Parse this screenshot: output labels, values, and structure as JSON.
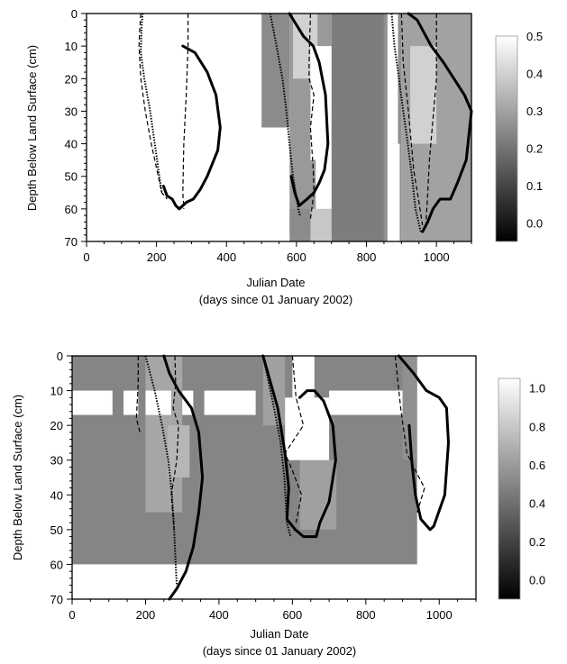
{
  "chart_data": [
    {
      "type": "heatmap",
      "xlabel": "Julian Date",
      "xlabel_line2": "(days since 01 January 2002)",
      "ylabel": "Depth Below Land Surface (cm)",
      "xlim": [
        0,
        1100
      ],
      "ylim": [
        70,
        0
      ],
      "y_inverted": true,
      "x_ticks": [
        0,
        200,
        400,
        600,
        800,
        1000
      ],
      "y_ticks": [
        0,
        10,
        20,
        30,
        40,
        50,
        60,
        70
      ],
      "colorbar": {
        "range": [
          -0.05,
          0.5
        ],
        "ticks": [
          "0.5",
          "0.4",
          "0.3",
          "0.2",
          "0.1",
          "0.0"
        ],
        "tick_values": [
          0.5,
          0.4,
          0.3,
          0.2,
          0.1,
          0.0
        ],
        "low_color": "#000000",
        "high_color": "#ffffff"
      },
      "cells": [
        {
          "x": [
            500,
            580
          ],
          "y": [
            0,
            35
          ],
          "value": 0.25
        },
        {
          "x": [
            580,
            700
          ],
          "y": [
            0,
            68
          ],
          "value": 0.28
        },
        {
          "x": [
            590,
            660
          ],
          "y": [
            0,
            20
          ],
          "value": 0.4
        },
        {
          "x": [
            700,
            850
          ],
          "y": [
            0,
            70
          ],
          "value": 0.22
        },
        {
          "x": [
            850,
            900
          ],
          "y": [
            0,
            70
          ],
          "value": 0.26
        },
        {
          "x": [
            900,
            1100
          ],
          "y": [
            0,
            70
          ],
          "value": 0.3
        },
        {
          "x": [
            925,
            1000
          ],
          "y": [
            10,
            40
          ],
          "value": 0.4
        },
        {
          "x": [
            580,
            640
          ],
          "y": [
            60,
            70
          ],
          "value": 0.25
        },
        {
          "x": [
            640,
            700
          ],
          "y": [
            60,
            70
          ],
          "value": 0.38
        }
      ],
      "white_regions": [
        {
          "x": [
            0,
            500
          ],
          "y": [
            0,
            70
          ]
        },
        {
          "x": [
            500,
            580
          ],
          "y": [
            35,
            70
          ]
        },
        {
          "x": [
            640,
            700
          ],
          "y": [
            10,
            45
          ]
        },
        {
          "x": [
            655,
            700
          ],
          "y": [
            45,
            60
          ]
        },
        {
          "x": [
            860,
            890
          ],
          "y": [
            0,
            40
          ]
        },
        {
          "x": [
            860,
            895
          ],
          "y": [
            40,
            70
          ]
        }
      ],
      "solid_curves": [
        [
          [
            275,
            10
          ],
          [
            310,
            12
          ],
          [
            345,
            18
          ],
          [
            370,
            25
          ],
          [
            382,
            35
          ],
          [
            375,
            42
          ],
          [
            345,
            50
          ],
          [
            325,
            54
          ],
          [
            305,
            57
          ],
          [
            285,
            58
          ],
          [
            265,
            60
          ],
          [
            255,
            59
          ],
          [
            245,
            57
          ],
          [
            230,
            56
          ],
          [
            220,
            53
          ]
        ],
        [
          [
            580,
            0
          ],
          [
            620,
            7
          ],
          [
            648,
            10
          ],
          [
            665,
            15
          ],
          [
            683,
            25
          ],
          [
            690,
            40
          ],
          [
            680,
            48
          ],
          [
            665,
            52
          ],
          [
            650,
            55
          ],
          [
            630,
            57
          ],
          [
            608,
            59
          ],
          [
            595,
            55
          ],
          [
            585,
            50
          ]
        ],
        [
          [
            920,
            0
          ],
          [
            945,
            2
          ],
          [
            985,
            10
          ],
          [
            1020,
            15
          ],
          [
            1050,
            20
          ],
          [
            1080,
            25
          ],
          [
            1100,
            30
          ],
          [
            1085,
            45
          ],
          [
            1060,
            52
          ],
          [
            1040,
            57
          ],
          [
            1010,
            57
          ],
          [
            990,
            60
          ],
          [
            975,
            64
          ],
          [
            960,
            67
          ]
        ]
      ],
      "dotted_curves": [
        [
          [
            160,
            0
          ],
          [
            157,
            5
          ],
          [
            155,
            12
          ],
          [
            165,
            20
          ],
          [
            182,
            30
          ],
          [
            195,
            40
          ],
          [
            208,
            50
          ],
          [
            215,
            55
          ]
        ],
        [
          [
            525,
            0
          ],
          [
            543,
            10
          ],
          [
            560,
            20
          ],
          [
            571,
            30
          ],
          [
            580,
            40
          ],
          [
            590,
            50
          ],
          [
            598,
            55
          ],
          [
            605,
            60
          ],
          [
            610,
            62
          ]
        ],
        [
          [
            872,
            0
          ],
          [
            880,
            10
          ],
          [
            893,
            20
          ],
          [
            905,
            30
          ],
          [
            918,
            40
          ],
          [
            930,
            50
          ],
          [
            940,
            60
          ],
          [
            955,
            67
          ]
        ]
      ],
      "dashed_curves": [
        [
          [
            155,
            0
          ],
          [
            152,
            5
          ],
          [
            150,
            10
          ],
          [
            155,
            20
          ],
          [
            168,
            30
          ],
          [
            185,
            40
          ],
          [
            205,
            50
          ],
          [
            215,
            55
          ],
          [
            230,
            57
          ]
        ],
        [
          [
            290,
            0
          ],
          [
            290,
            10
          ],
          [
            285,
            25
          ],
          [
            278,
            40
          ],
          [
            275,
            55
          ],
          [
            278,
            60
          ]
        ],
        [
          [
            640,
            0
          ],
          [
            636,
            15
          ],
          [
            636,
            20
          ],
          [
            650,
            25
          ],
          [
            640,
            35
          ],
          [
            648,
            48
          ],
          [
            650,
            55
          ],
          [
            640,
            63
          ]
        ],
        [
          [
            900,
            0
          ],
          [
            905,
            15
          ],
          [
            920,
            30
          ],
          [
            935,
            48
          ],
          [
            950,
            58
          ],
          [
            960,
            65
          ]
        ],
        [
          [
            1000,
            0
          ],
          [
            1000,
            20
          ],
          [
            988,
            35
          ],
          [
            980,
            45
          ],
          [
            975,
            55
          ],
          [
            970,
            65
          ]
        ]
      ]
    },
    {
      "type": "heatmap",
      "xlabel": "Julian Date",
      "xlabel_line2": "(days since 01 January 2002)",
      "ylabel": "Depth Below Land Surface (cm)",
      "xlim": [
        0,
        1100
      ],
      "ylim": [
        70,
        0
      ],
      "y_inverted": true,
      "x_ticks": [
        0,
        200,
        400,
        600,
        800,
        1000
      ],
      "y_ticks": [
        0,
        10,
        20,
        30,
        40,
        50,
        60,
        70
      ],
      "colorbar": {
        "range": [
          -0.1,
          1.05
        ],
        "ticks": [
          "1.0",
          "0.8",
          "0.6",
          "0.4",
          "0.2",
          "0.0"
        ],
        "tick_values": [
          1.0,
          0.8,
          0.6,
          0.4,
          0.2,
          0.0
        ],
        "low_color": "#000000",
        "high_color": "#ffffff"
      },
      "cells": [
        {
          "x": [
            0,
            940
          ],
          "y": [
            0,
            60
          ],
          "value": 0.5
        },
        {
          "x": [
            200,
            300
          ],
          "y": [
            0,
            45
          ],
          "value": 0.65
        },
        {
          "x": [
            260,
            320
          ],
          "y": [
            20,
            35
          ],
          "value": 0.72
        },
        {
          "x": [
            520,
            580
          ],
          "y": [
            0,
            20
          ],
          "value": 0.62
        },
        {
          "x": [
            620,
            720
          ],
          "y": [
            30,
            50
          ],
          "value": 0.62
        },
        {
          "x": [
            900,
            940
          ],
          "y": [
            0,
            30
          ],
          "value": 0.55
        }
      ],
      "white_regions": [
        {
          "x": [
            0,
            110
          ],
          "y": [
            10,
            17
          ]
        },
        {
          "x": [
            140,
            180
          ],
          "y": [
            10,
            17
          ]
        },
        {
          "x": [
            200,
            270
          ],
          "y": [
            10,
            17
          ]
        },
        {
          "x": [
            300,
            330
          ],
          "y": [
            10,
            17
          ]
        },
        {
          "x": [
            360,
            500
          ],
          "y": [
            10,
            17
          ]
        },
        {
          "x": [
            600,
            660
          ],
          "y": [
            0,
            12
          ]
        },
        {
          "x": [
            580,
            700
          ],
          "y": [
            12,
            30
          ]
        },
        {
          "x": [
            700,
            900
          ],
          "y": [
            10,
            17
          ]
        },
        {
          "x": [
            940,
            1100
          ],
          "y": [
            0,
            70
          ]
        },
        {
          "x": [
            0,
            940
          ],
          "y": [
            60,
            70
          ]
        }
      ],
      "solid_curves": [
        [
          [
            250,
            0
          ],
          [
            265,
            5
          ],
          [
            290,
            10
          ],
          [
            325,
            15
          ],
          [
            345,
            22
          ],
          [
            355,
            35
          ],
          [
            345,
            45
          ],
          [
            330,
            55
          ],
          [
            310,
            62
          ],
          [
            285,
            67
          ],
          [
            265,
            70
          ]
        ],
        [
          [
            520,
            0
          ],
          [
            560,
            15
          ],
          [
            580,
            28
          ],
          [
            590,
            38
          ],
          [
            585,
            47
          ],
          [
            608,
            50
          ],
          [
            630,
            52
          ],
          [
            665,
            52
          ],
          [
            675,
            48
          ],
          [
            700,
            42
          ],
          [
            718,
            30
          ],
          [
            710,
            20
          ],
          [
            685,
            13
          ],
          [
            660,
            10
          ],
          [
            640,
            10
          ],
          [
            620,
            12
          ]
        ],
        [
          [
            890,
            0
          ],
          [
            930,
            5
          ],
          [
            965,
            10
          ],
          [
            1000,
            12
          ],
          [
            1020,
            15
          ],
          [
            1025,
            25
          ],
          [
            1015,
            40
          ],
          [
            985,
            49
          ],
          [
            975,
            50
          ],
          [
            950,
            47
          ],
          [
            935,
            40
          ],
          [
            925,
            30
          ],
          [
            918,
            20
          ]
        ]
      ],
      "dotted_curves": [
        [
          [
            200,
            0
          ],
          [
            225,
            10
          ],
          [
            245,
            20
          ],
          [
            262,
            30
          ],
          [
            272,
            40
          ],
          [
            278,
            50
          ],
          [
            282,
            60
          ],
          [
            285,
            66
          ]
        ],
        [
          [
            520,
            0
          ],
          [
            550,
            15
          ],
          [
            568,
            25
          ],
          [
            578,
            35
          ],
          [
            585,
            48
          ],
          [
            595,
            52
          ]
        ]
      ],
      "dashed_curves": [
        [
          [
            180,
            0
          ],
          [
            180,
            8
          ],
          [
            175,
            18
          ],
          [
            185,
            22
          ]
        ],
        [
          [
            280,
            0
          ],
          [
            282,
            8
          ],
          [
            275,
            15
          ],
          [
            290,
            20
          ],
          [
            285,
            30
          ],
          [
            270,
            40
          ],
          [
            278,
            50
          ]
        ],
        [
          [
            600,
            0
          ],
          [
            610,
            12
          ],
          [
            630,
            20
          ],
          [
            580,
            28
          ],
          [
            600,
            33
          ],
          [
            625,
            40
          ],
          [
            610,
            48
          ]
        ],
        [
          [
            880,
            0
          ],
          [
            895,
            15
          ],
          [
            912,
            28
          ],
          [
            930,
            32
          ],
          [
            960,
            38
          ],
          [
            940,
            45
          ]
        ]
      ]
    }
  ]
}
